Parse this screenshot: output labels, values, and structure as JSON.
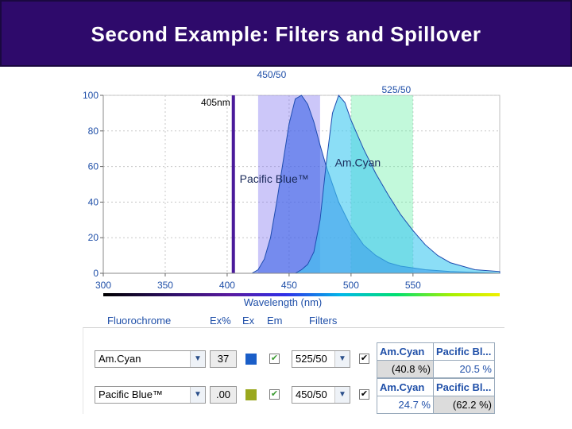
{
  "slide_title": "Second Example: Filters and Spillover",
  "chart_data": {
    "type": "area",
    "xlabel": "Wavelength (nm)",
    "ylabel": "",
    "xlim": [
      300,
      620
    ],
    "ylim": [
      0,
      100
    ],
    "x_ticks": [
      300,
      350,
      400,
      450,
      500,
      550
    ],
    "y_ticks": [
      0,
      20,
      40,
      60,
      80,
      100
    ],
    "grid": true,
    "laser": {
      "wavelength": 405,
      "label": "405nm"
    },
    "filters": [
      {
        "label": "450/50",
        "center": 450,
        "width": 50,
        "color": "#7a6cf0"
      },
      {
        "label": "525/50",
        "center": 525,
        "width": 50,
        "color": "#5ef0a0"
      }
    ],
    "series": [
      {
        "name": "Pacific Blue™",
        "color": "#3a62e6",
        "x": [
          420,
          425,
          430,
          435,
          440,
          445,
          450,
          455,
          460,
          465,
          470,
          475,
          480,
          490,
          500,
          510,
          520,
          530,
          540,
          560,
          580,
          600,
          620
        ],
        "y": [
          0,
          2,
          8,
          20,
          40,
          62,
          84,
          98,
          100,
          95,
          85,
          72,
          60,
          40,
          26,
          16,
          10,
          6,
          4,
          2,
          1,
          0.5,
          0
        ]
      },
      {
        "name": "Am.Cyan",
        "color": "#3ec8f0",
        "x": [
          455,
          460,
          465,
          470,
          475,
          480,
          485,
          490,
          495,
          500,
          505,
          510,
          520,
          530,
          540,
          550,
          560,
          570,
          580,
          600,
          620
        ],
        "y": [
          0,
          2,
          5,
          12,
          30,
          62,
          90,
          100,
          96,
          86,
          78,
          70,
          56,
          44,
          33,
          24,
          16,
          10,
          6,
          2,
          1
        ]
      }
    ],
    "annotations": [
      {
        "text": "Am.Cyan"
      },
      {
        "text": "Pacific Blue™"
      }
    ]
  },
  "panel": {
    "headers": {
      "fluorochrome": "Fluorochrome",
      "ex_pct": "Ex%",
      "ex": "Ex",
      "em": "Em",
      "filters": "Filters"
    },
    "rows": [
      {
        "fluor": "Am.Cyan",
        "ex_pct": "37",
        "ex_color": "#1a5ec8",
        "filter": "525/50"
      },
      {
        "fluor": "Pacific Blue™",
        "ex_pct": ".00",
        "ex_color": "#9aa81e",
        "filter": "450/50"
      }
    ],
    "arrow_glyph": "▼",
    "check_glyph": "✔",
    "spill_tables": [
      {
        "col1": "Am.Cyan",
        "col2": "Pacific Bl...",
        "v1": "(40.8 %)",
        "v2": "20.5 %"
      },
      {
        "col1": "Am.Cyan",
        "col2": "Pacific Bl...",
        "v1": "24.7 %",
        "v2": "(62.2 %)"
      }
    ]
  }
}
